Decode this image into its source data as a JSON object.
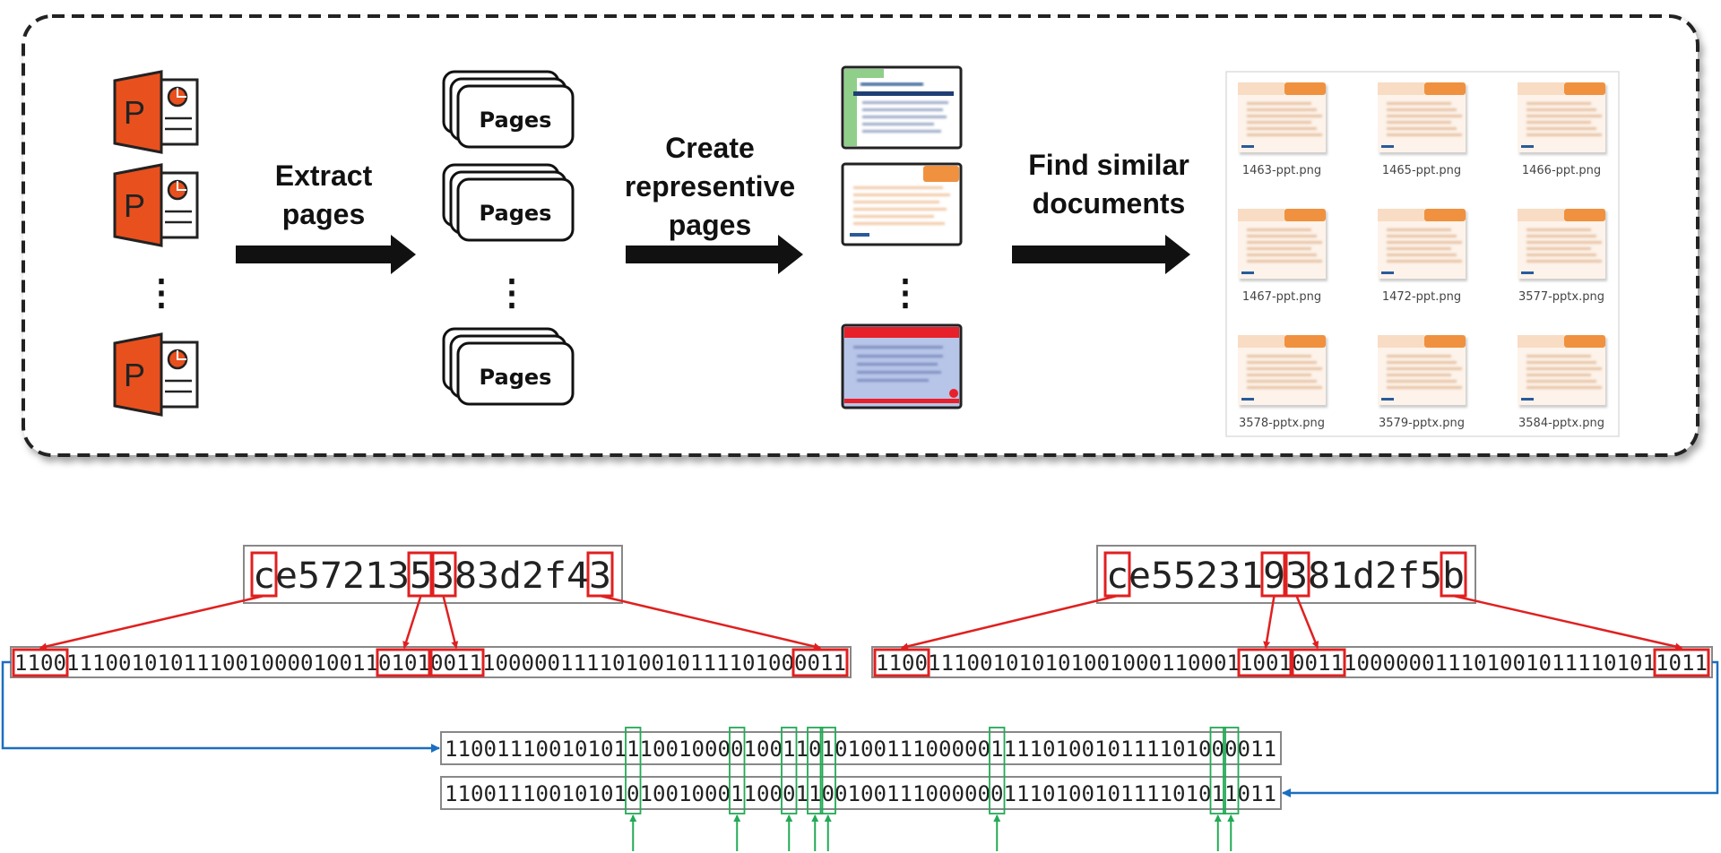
{
  "pipeline": {
    "steps": [
      {
        "lines": [
          "Extract",
          "pages"
        ]
      },
      {
        "lines": [
          "Create",
          "representive",
          "pages"
        ]
      },
      {
        "lines": [
          "Find similar",
          "documents"
        ]
      }
    ],
    "pages_label": "Pages",
    "ellipsis": "⋮",
    "results": [
      "1463-ppt.png",
      "1465-ppt.png",
      "1466-ppt.png",
      "1467-ppt.png",
      "1472-ppt.png",
      "3577-pptx.png",
      "3578-pptx.png",
      "3579-pptx.png",
      "3584-pptx.png"
    ],
    "icons": {
      "document": "powerpoint-file-icon",
      "arrow": "right-arrow-icon"
    }
  },
  "hashes": {
    "left": {
      "hex": "ce572135383d2f43",
      "binary": "1100111001010111001000010011010100111000001111010010111101000011",
      "highlighted_hex_indices": [
        0,
        7,
        8,
        15
      ]
    },
    "right": {
      "hex": "ce552319381d2f5b",
      "binary": "1100111001010101001000110001100100111000000111010010111101011011",
      "highlighted_hex_indices": [
        0,
        7,
        8,
        15
      ]
    },
    "comparison": {
      "row1": "1100111001010111001000010011010100111000001111010010111101000011",
      "row2": "1100111001010101001000110001100100111000000111010010111101011011",
      "differing_bit_indices": [
        14,
        22,
        26,
        28,
        29,
        42,
        59,
        60
      ]
    }
  },
  "colors": {
    "powerpoint_orange": "#e8501e",
    "highlight_red": "#e02020",
    "difference_green": "#22aa55",
    "connector_blue": "#1a6fc0",
    "thumbnail_orange": "#f0913f"
  }
}
